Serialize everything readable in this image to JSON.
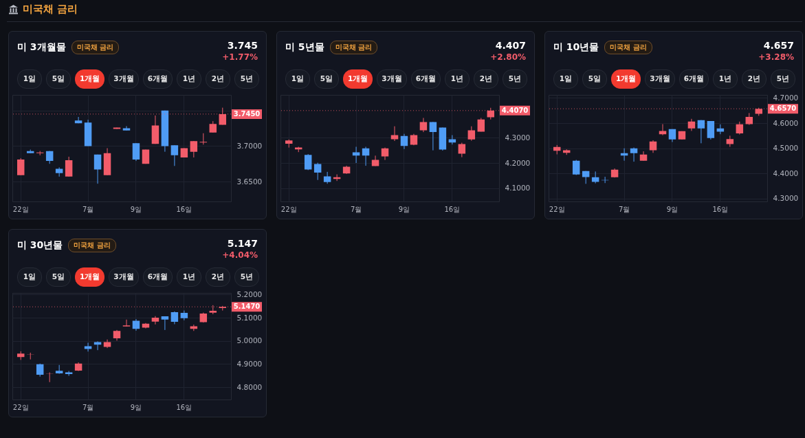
{
  "chart_data": [
    {
      "type": "other",
      "title": "미국채 금리"
    },
    {
      "type": "candlestick",
      "title": "미 3개월물",
      "annotations": [
        "미국채 금리",
        "3.745",
        "+1.77%",
        "1일",
        "5일",
        "1개월",
        "3개월",
        "6개월",
        "1년",
        "2년",
        "5년"
      ],
      "categories": [
        "22일",
        null,
        null,
        null,
        null,
        null,
        null,
        "7월",
        null,
        null,
        null,
        null,
        "9일",
        null,
        null,
        null,
        null,
        "16일",
        null,
        null,
        null,
        null
      ],
      "ohlc": [
        [
          3.659,
          3.683,
          3.659,
          3.681
        ],
        [
          3.693,
          3.695,
          3.69,
          3.69
        ],
        [
          3.69,
          3.693,
          3.687,
          3.691
        ],
        [
          3.693,
          3.693,
          3.675,
          3.679
        ],
        [
          3.668,
          3.67,
          3.657,
          3.662
        ],
        [
          3.657,
          3.685,
          3.657,
          3.68
        ],
        [
          3.736,
          3.741,
          3.732,
          3.732
        ],
        [
          3.733,
          3.737,
          3.7,
          3.7
        ],
        [
          3.688,
          3.688,
          3.647,
          3.667
        ],
        [
          3.659,
          3.697,
          3.659,
          3.69
        ],
        [
          3.724,
          3.726,
          3.724,
          3.726
        ],
        [
          3.725,
          3.728,
          3.722,
          3.722
        ],
        [
          3.704,
          3.704,
          3.679,
          3.681
        ],
        [
          3.675,
          3.695,
          3.675,
          3.695
        ],
        [
          3.703,
          3.743,
          3.703,
          3.729
        ],
        [
          3.75,
          3.75,
          3.692,
          3.7
        ],
        [
          3.701,
          3.701,
          3.672,
          3.687
        ],
        [
          3.684,
          3.697,
          3.684,
          3.697
        ],
        [
          3.692,
          3.707,
          3.684,
          3.707
        ],
        [
          3.705,
          3.718,
          3.702,
          3.706
        ],
        [
          3.719,
          3.735,
          3.719,
          3.731
        ],
        [
          3.73,
          3.754,
          3.73,
          3.745
        ]
      ],
      "colors": [
        "#f25c6a",
        "#4f9cf5",
        "#f25c6a",
        "#4f9cf5",
        "#4f9cf5",
        "#f25c6a",
        "#4f9cf5",
        "#4f9cf5",
        "#4f9cf5",
        "#f25c6a",
        "#f25c6a",
        "#4f9cf5",
        "#4f9cf5",
        "#f25c6a",
        "#f25c6a",
        "#4f9cf5",
        "#4f9cf5",
        "#f25c6a",
        "#f25c6a",
        "#f25c6a",
        "#f25c6a",
        "#f25c6a"
      ],
      "ylim": [
        3.622,
        3.772
      ],
      "yticks": [
        {
          "value": 3.65,
          "label": "3.6500"
        },
        {
          "value": 3.7,
          "label": "3.7000"
        },
        {
          "value": 3.75,
          "label": null
        }
      ],
      "ref_lines": [
        {
          "axis": "y",
          "value": 3.745,
          "label": "3.7450",
          "color": "#f25c6a"
        }
      ],
      "grid": true
    },
    {
      "type": "candlestick",
      "title": "미 5년물",
      "annotations": [
        "미국채 금리",
        "4.407",
        "+2.80%",
        "1일",
        "5일",
        "1개월",
        "3개월",
        "6개월",
        "1년",
        "2년",
        "5년"
      ],
      "categories": [
        "22일",
        null,
        null,
        null,
        null,
        null,
        null,
        "7월",
        null,
        null,
        null,
        null,
        "9일",
        null,
        null,
        null,
        null,
        "16일",
        null,
        null,
        null,
        null
      ],
      "ohlc": [
        [
          4.276,
          4.293,
          4.261,
          4.289
        ],
        [
          4.254,
          4.264,
          4.243,
          4.261
        ],
        [
          4.232,
          4.235,
          4.172,
          4.174
        ],
        [
          4.196,
          4.201,
          4.133,
          4.162
        ],
        [
          4.147,
          4.165,
          4.118,
          4.125
        ],
        [
          4.137,
          4.155,
          4.129,
          4.144
        ],
        [
          4.159,
          4.189,
          4.157,
          4.185
        ],
        [
          4.242,
          4.264,
          4.2,
          4.229
        ],
        [
          4.258,
          4.264,
          4.189,
          4.229
        ],
        [
          4.188,
          4.229,
          4.188,
          4.212
        ],
        [
          4.226,
          4.261,
          4.212,
          4.258
        ],
        [
          4.294,
          4.345,
          4.287,
          4.31
        ],
        [
          4.307,
          4.315,
          4.255,
          4.267
        ],
        [
          4.272,
          4.315,
          4.27,
          4.31
        ],
        [
          4.329,
          4.378,
          4.322,
          4.362
        ],
        [
          4.362,
          4.362,
          4.25,
          4.322
        ],
        [
          4.34,
          4.34,
          4.249,
          4.253
        ],
        [
          4.294,
          4.31,
          4.273,
          4.281
        ],
        [
          4.237,
          4.28,
          4.223,
          4.275
        ],
        [
          4.293,
          4.345,
          4.288,
          4.329
        ],
        [
          4.324,
          4.378,
          4.324,
          4.372
        ],
        [
          4.381,
          4.418,
          4.372,
          4.407
        ]
      ],
      "colors": [
        "#f25c6a",
        "#f25c6a",
        "#4f9cf5",
        "#4f9cf5",
        "#4f9cf5",
        "#f25c6a",
        "#f25c6a",
        "#4f9cf5",
        "#4f9cf5",
        "#f25c6a",
        "#f25c6a",
        "#f25c6a",
        "#4f9cf5",
        "#f25c6a",
        "#f25c6a",
        "#4f9cf5",
        "#4f9cf5",
        "#4f9cf5",
        "#f25c6a",
        "#f25c6a",
        "#f25c6a",
        "#f25c6a"
      ],
      "ylim": [
        4.048,
        4.469
      ],
      "yticks": [
        {
          "value": 4.1,
          "label": "4.1000"
        },
        {
          "value": 4.2,
          "label": "4.2000"
        },
        {
          "value": 4.3,
          "label": "4.3000"
        }
      ],
      "ref_lines": [
        {
          "axis": "y",
          "value": 4.407,
          "label": "4.4070",
          "color": "#f25c6a"
        }
      ],
      "grid": true
    },
    {
      "type": "candlestick",
      "title": "미 10년물",
      "annotations": [
        "미국채 금리",
        "4.657",
        "+3.28%",
        "1일",
        "5일",
        "1개월",
        "3개월",
        "6개월",
        "1년",
        "2년",
        "5년"
      ],
      "categories": [
        "22일",
        null,
        null,
        null,
        null,
        null,
        null,
        "7월",
        null,
        null,
        null,
        null,
        "9일",
        null,
        null,
        null,
        null,
        "16일",
        null,
        null,
        null,
        null
      ],
      "ohlc": [
        [
          4.49,
          4.513,
          4.476,
          4.505
        ],
        [
          4.482,
          4.496,
          4.474,
          4.492
        ],
        [
          4.451,
          4.454,
          4.394,
          4.396
        ],
        [
          4.41,
          4.41,
          4.359,
          4.386
        ],
        [
          4.385,
          4.408,
          4.361,
          4.367
        ],
        [
          4.374,
          4.387,
          4.362,
          4.373
        ],
        [
          4.385,
          4.42,
          4.384,
          4.415
        ],
        [
          4.481,
          4.5,
          4.451,
          4.471
        ],
        [
          4.5,
          4.503,
          4.447,
          4.481
        ],
        [
          4.451,
          4.488,
          4.451,
          4.475
        ],
        [
          4.492,
          4.532,
          4.482,
          4.527
        ],
        [
          4.556,
          4.596,
          4.552,
          4.569
        ],
        [
          4.576,
          4.576,
          4.525,
          4.535
        ],
        [
          4.535,
          4.568,
          4.535,
          4.568
        ],
        [
          4.579,
          4.617,
          4.569,
          4.606
        ],
        [
          4.612,
          4.612,
          4.52,
          4.579
        ],
        [
          4.608,
          4.608,
          4.535,
          4.541
        ],
        [
          4.579,
          4.595,
          4.556,
          4.566
        ],
        [
          4.517,
          4.55,
          4.506,
          4.537
        ],
        [
          4.559,
          4.606,
          4.555,
          4.595
        ],
        [
          4.596,
          4.64,
          4.593,
          4.625
        ],
        [
          4.637,
          4.661,
          4.629,
          4.657
        ]
      ],
      "colors": [
        "#f25c6a",
        "#f25c6a",
        "#4f9cf5",
        "#4f9cf5",
        "#4f9cf5",
        "#4f9cf5",
        "#f25c6a",
        "#4f9cf5",
        "#4f9cf5",
        "#f25c6a",
        "#f25c6a",
        "#f25c6a",
        "#4f9cf5",
        "#f25c6a",
        "#f25c6a",
        "#4f9cf5",
        "#4f9cf5",
        "#4f9cf5",
        "#f25c6a",
        "#f25c6a",
        "#f25c6a",
        "#f25c6a"
      ],
      "ylim": [
        4.289,
        4.712
      ],
      "yticks": [
        {
          "value": 4.3,
          "label": "4.3000"
        },
        {
          "value": 4.4,
          "label": "4.4000"
        },
        {
          "value": 4.5,
          "label": "4.5000"
        },
        {
          "value": 4.6,
          "label": "4.6000"
        },
        {
          "value": 4.7,
          "label": "4.7000"
        }
      ],
      "ref_lines": [
        {
          "axis": "y",
          "value": 4.657,
          "label": "4.6570",
          "color": "#f25c6a"
        }
      ],
      "grid": true
    },
    {
      "type": "candlestick",
      "title": "미 30년물",
      "annotations": [
        "미국채 금리",
        "5.147",
        "+4.04%",
        "1일",
        "5일",
        "1개월",
        "3개월",
        "6개월",
        "1년",
        "2년",
        "5년"
      ],
      "categories": [
        "22일",
        null,
        null,
        null,
        null,
        null,
        null,
        "7월",
        null,
        null,
        null,
        null,
        "9일",
        null,
        null,
        null,
        null,
        "16일",
        null,
        null,
        null,
        null
      ],
      "ohlc": [
        [
          4.93,
          4.955,
          4.918,
          4.945
        ],
        [
          4.94,
          4.949,
          4.92,
          4.941
        ],
        [
          4.899,
          4.902,
          4.846,
          4.854
        ],
        [
          4.858,
          4.864,
          4.822,
          4.859
        ],
        [
          4.871,
          4.896,
          4.858,
          4.86
        ],
        [
          4.864,
          4.87,
          4.849,
          4.857
        ],
        [
          4.872,
          4.907,
          4.87,
          4.902
        ],
        [
          4.977,
          4.992,
          4.954,
          4.965
        ],
        [
          4.995,
          4.998,
          4.96,
          4.984
        ],
        [
          4.974,
          5.006,
          4.969,
          4.995
        ],
        [
          5.011,
          5.047,
          5.001,
          5.043
        ],
        [
          5.062,
          5.092,
          5.062,
          5.067
        ],
        [
          5.087,
          5.094,
          5.044,
          5.052
        ],
        [
          5.057,
          5.077,
          5.054,
          5.074
        ],
        [
          5.083,
          5.107,
          5.071,
          5.1
        ],
        [
          5.106,
          5.106,
          5.047,
          5.092
        ],
        [
          5.124,
          5.127,
          5.072,
          5.082
        ],
        [
          5.121,
          5.131,
          5.089,
          5.098
        ],
        [
          5.052,
          5.07,
          5.043,
          5.063
        ],
        [
          5.081,
          5.122,
          5.079,
          5.118
        ],
        [
          5.122,
          5.154,
          5.115,
          5.13
        ],
        [
          5.142,
          5.151,
          5.131,
          5.147
        ]
      ],
      "colors": [
        "#f25c6a",
        "#f25c6a",
        "#4f9cf5",
        "#f25c6a",
        "#4f9cf5",
        "#4f9cf5",
        "#f25c6a",
        "#4f9cf5",
        "#4f9cf5",
        "#f25c6a",
        "#f25c6a",
        "#f25c6a",
        "#4f9cf5",
        "#f25c6a",
        "#f25c6a",
        "#4f9cf5",
        "#4f9cf5",
        "#4f9cf5",
        "#f25c6a",
        "#f25c6a",
        "#f25c6a",
        "#f25c6a"
      ],
      "ylim": [
        4.747,
        5.207
      ],
      "yticks": [
        {
          "value": 4.8,
          "label": "4.8000"
        },
        {
          "value": 4.9,
          "label": "4.9000"
        },
        {
          "value": 5.0,
          "label": "5.0000"
        },
        {
          "value": 5.1,
          "label": "5.1000"
        },
        {
          "value": 5.2,
          "label": "5.2000"
        }
      ],
      "ref_lines": [
        {
          "axis": "y",
          "value": 5.147,
          "label": "5.1470",
          "color": "#f25c6a"
        }
      ],
      "grid": true
    }
  ]
}
